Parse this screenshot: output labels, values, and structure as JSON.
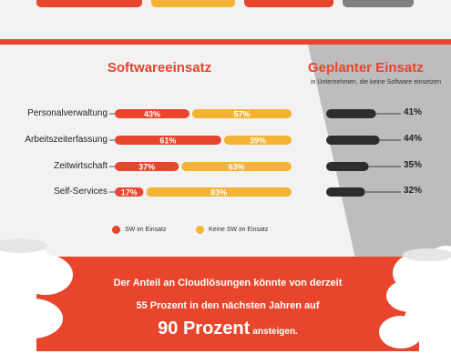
{
  "colors": {
    "accent": "#e8452c",
    "secondary": "#f5b335",
    "dark": "#2d2d2d",
    "gray_top": "#7f7f7f",
    "panel": "#bdbdbd"
  },
  "chart_data": {
    "type": "bar",
    "title": "Softwareeinsatz",
    "categories": [
      "Personalverwaltung",
      "Arbeitszeiterfassung",
      "Zeitwirtschaft",
      "Self-Services"
    ],
    "series": [
      {
        "name": "SW im Einsatz",
        "values": [
          43,
          61,
          37,
          17
        ],
        "labels": [
          "43%",
          "61%",
          "37%",
          "17%"
        ]
      },
      {
        "name": "Keine SW im Einsatz",
        "values": [
          57,
          39,
          63,
          83
        ],
        "labels": [
          "57%",
          "39%",
          "63%",
          "83%"
        ]
      }
    ],
    "planned": {
      "title": "Geplanter Einsatz",
      "subtitle": "in Unternehmen, die keine Software einsetzen",
      "values": [
        41,
        44,
        35,
        32
      ],
      "labels": [
        "41%",
        "44%",
        "35%",
        "32%"
      ]
    },
    "legend_position": "bottom"
  },
  "banner": {
    "line1": "Der Anteil an Cloudlösungen könnte von derzeit",
    "line2": "55 Prozent in den nächsten Jahren auf",
    "big": "90 Prozent",
    "rest": "ansteigen."
  }
}
